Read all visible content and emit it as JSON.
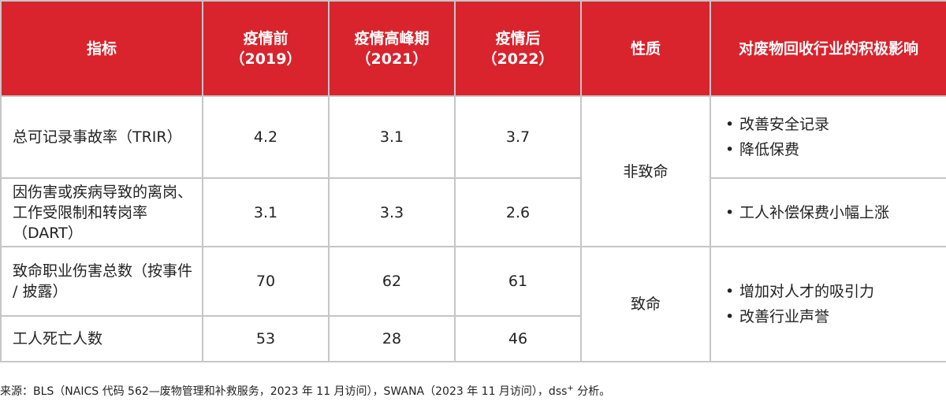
{
  "header": {
    "col_indicator": "指标",
    "col_pre_line1": "疫情前",
    "col_pre_line2": "（2019）",
    "col_peak_line1": "疫情高峰期",
    "col_peak_line2": "（2021）",
    "col_post_line1": "疫情后",
    "col_post_line2": "（2022）",
    "col_nature": "性质",
    "col_impact": "对废物回收行业的积极影响"
  },
  "rows": [
    {
      "indicator": "总可记录事故率（TRIR）",
      "pre": "4.2",
      "peak": "3.1",
      "post": "3.7"
    },
    {
      "indicator": "因伤害或疾病导致的离岗、工作受限制和转岗率（DART）",
      "pre": "3.1",
      "peak": "3.3",
      "post": "2.6"
    },
    {
      "indicator": "致命职业伤害总数（按事件 / 披露）",
      "pre": "70",
      "peak": "62",
      "post": "61"
    },
    {
      "indicator": "工人死亡人数",
      "pre": "53",
      "peak": "28",
      "post": "46"
    }
  ],
  "nature": {
    "non_fatal": "非致命",
    "fatal": "致命"
  },
  "impacts": {
    "group1": [
      "改善安全记录",
      "降低保费"
    ],
    "group2": [
      "工人补偿保费小幅上涨"
    ],
    "group3": [
      "增加对人才的吸引力",
      "改善行业声誉"
    ]
  },
  "source": {
    "text_before": "来源：BLS（NAICS 代码 562—废物管理和补救服务，2023 年 11 月访问），SWANA（2023 年 11 月访问），dss",
    "sup": "+",
    "text_after": " 分析。"
  }
}
